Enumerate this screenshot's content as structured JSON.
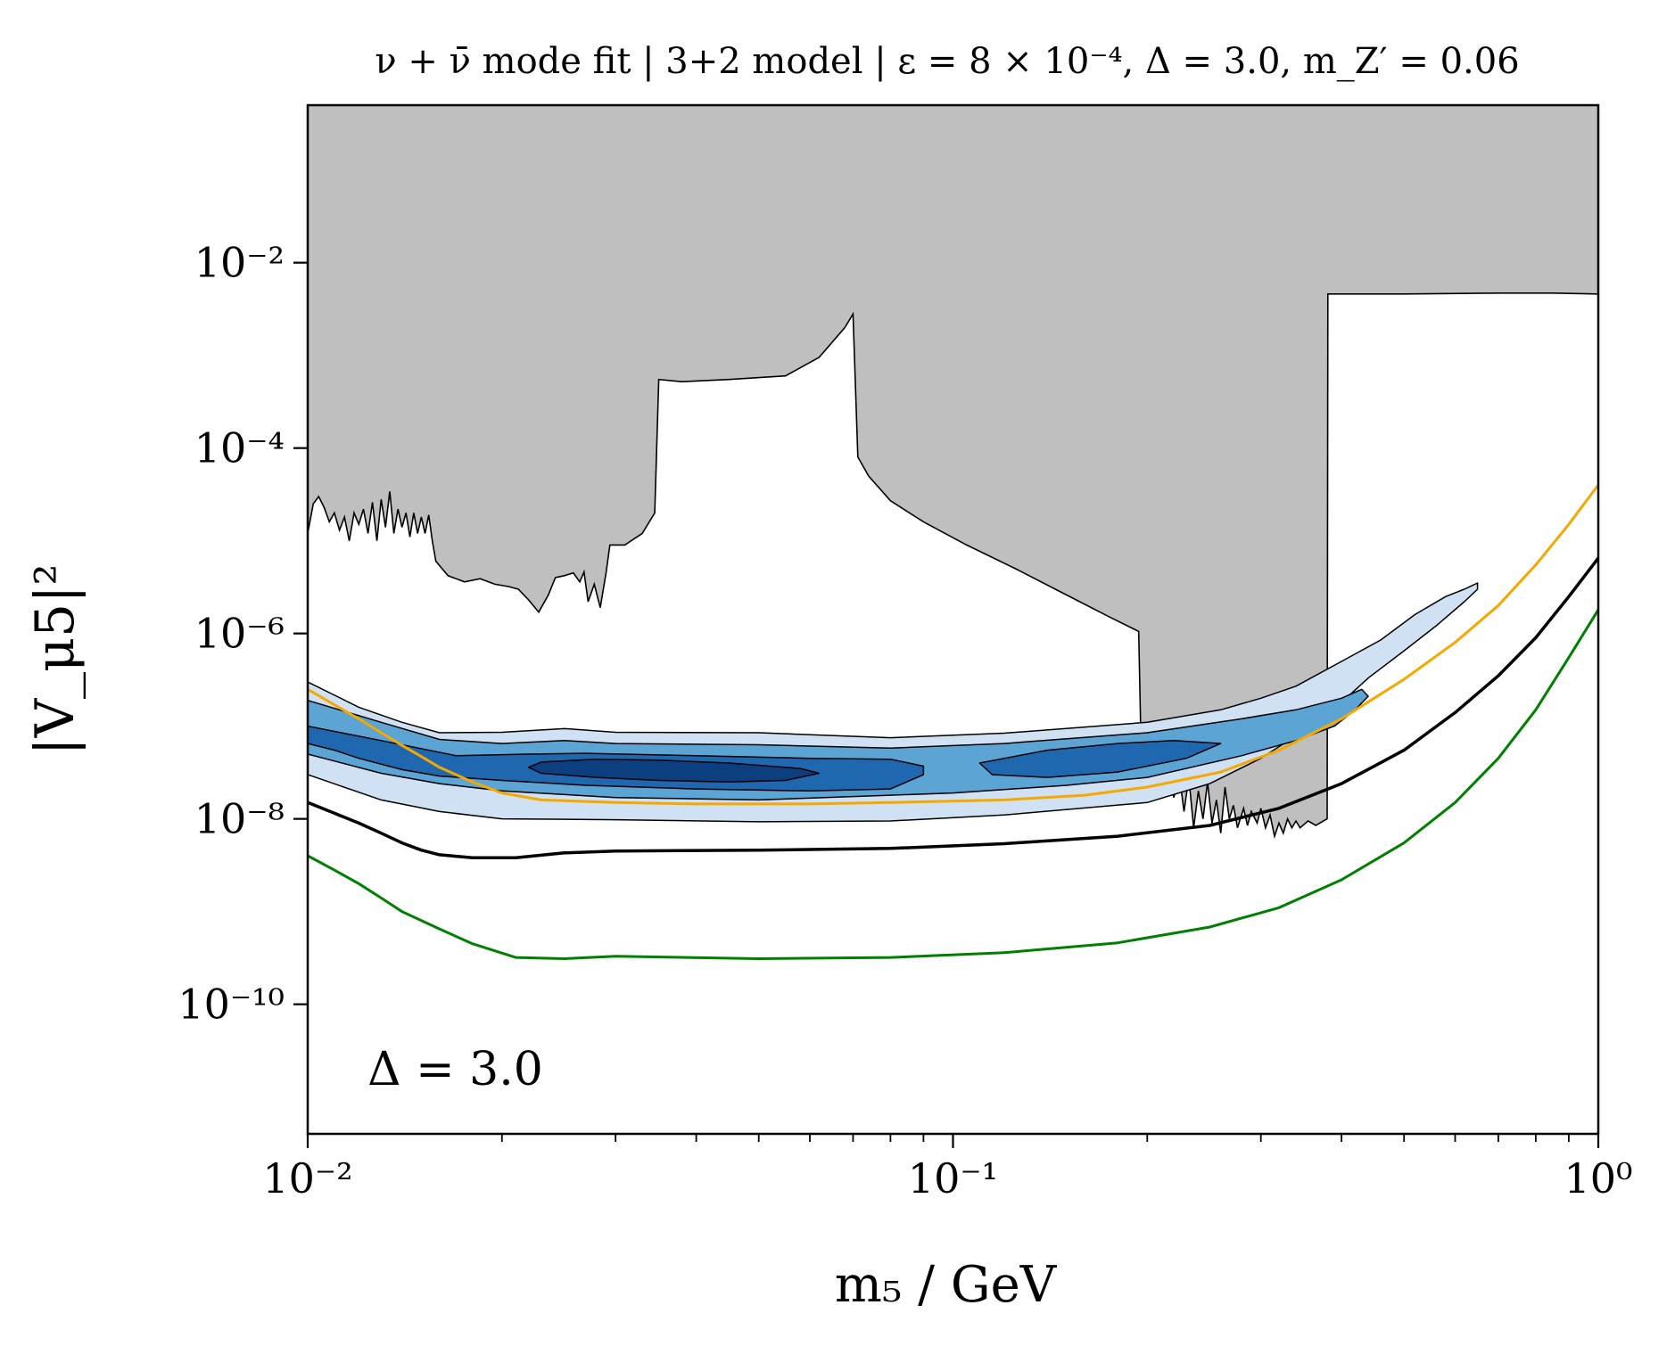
{
  "chart_data": {
    "type": "contour",
    "title": "ν + ν̄ mode fit | 3+2 model | ε = 8 × 10⁻⁴, Δ = 3.0, m_Z′ = 0.06",
    "title_parts": {
      "mode": "ν + ν̄ mode fit",
      "model": "3+2 model",
      "epsilon": "ε = 8 × 10⁻⁴",
      "delta": "Δ = 3.0",
      "mzp": "m_Z′ = 0.06"
    },
    "xlabel": "m₅ / GeV",
    "ylabel": "|V_μ5|²",
    "xscale": "log",
    "yscale": "log",
    "xlim": [
      0.01,
      1.0
    ],
    "ylim": [
      4e-12,
      0.5
    ],
    "x_tick_labels": [
      {
        "value": 0.01,
        "label": "10⁻²"
      },
      {
        "value": 0.1,
        "label": "10⁻¹"
      },
      {
        "value": 1.0,
        "label": "10⁰"
      }
    ],
    "y_tick_labels": [
      {
        "value": 1e-10,
        "label": "10⁻¹⁰"
      },
      {
        "value": 1e-08,
        "label": "10⁻⁸"
      },
      {
        "value": 1e-06,
        "label": "10⁻⁶"
      },
      {
        "value": 0.0001,
        "label": "10⁻⁴"
      },
      {
        "value": 0.01,
        "label": "10⁻²"
      }
    ],
    "annotation": "Δ = 3.0",
    "excluded_region": {
      "color": "#bfbfbf",
      "boundary": [
        [
          0.01,
          1.2e-05
        ],
        [
          0.0102,
          2.5e-05
        ],
        [
          0.0104,
          3e-05
        ],
        [
          0.0106,
          2.3e-05
        ],
        [
          0.0108,
          1.6e-05
        ],
        [
          0.011,
          2e-05
        ],
        [
          0.0112,
          1.3e-05
        ],
        [
          0.0114,
          1.8e-05
        ],
        [
          0.0116,
          1e-05
        ],
        [
          0.0118,
          2e-05
        ],
        [
          0.012,
          1.5e-05
        ],
        [
          0.0122,
          2.2e-05
        ],
        [
          0.0124,
          1.2e-05
        ],
        [
          0.0126,
          2.6e-05
        ],
        [
          0.0128,
          1e-05
        ],
        [
          0.013,
          2.8e-05
        ],
        [
          0.0132,
          1.4e-05
        ],
        [
          0.0134,
          3.4e-05
        ],
        [
          0.0136,
          1.2e-05
        ],
        [
          0.0138,
          2.2e-05
        ],
        [
          0.014,
          1.4e-05
        ],
        [
          0.0142,
          2e-05
        ],
        [
          0.0144,
          1.1e-05
        ],
        [
          0.0146,
          2e-05
        ],
        [
          0.0148,
          1.2e-05
        ],
        [
          0.015,
          1.8e-05
        ],
        [
          0.0152,
          1.2e-05
        ],
        [
          0.0154,
          1.9e-05
        ],
        [
          0.0156,
          1e-05
        ],
        [
          0.0158,
          6e-06
        ],
        [
          0.0165,
          4.2e-06
        ],
        [
          0.0175,
          3.6e-06
        ],
        [
          0.0185,
          3.9e-06
        ],
        [
          0.0195,
          3.4e-06
        ],
        [
          0.0205,
          3.2e-06
        ],
        [
          0.0212,
          3e-06
        ],
        [
          0.022,
          2.3e-06
        ],
        [
          0.0228,
          1.7e-06
        ],
        [
          0.0236,
          2.6e-06
        ],
        [
          0.0242,
          4e-06
        ],
        [
          0.025,
          4.2e-06
        ],
        [
          0.0258,
          4.5e-06
        ],
        [
          0.0264,
          3.6e-06
        ],
        [
          0.0268,
          4.6e-06
        ],
        [
          0.0272,
          2.2e-06
        ],
        [
          0.0278,
          3.4e-06
        ],
        [
          0.0284,
          1.9e-06
        ],
        [
          0.029,
          4.5e-06
        ],
        [
          0.0294,
          9e-06
        ],
        [
          0.031,
          9e-06
        ],
        [
          0.033,
          1.2e-05
        ],
        [
          0.0345,
          2e-05
        ],
        [
          0.035,
          0.00055
        ],
        [
          0.038,
          0.00052
        ],
        [
          0.045,
          0.00055
        ],
        [
          0.055,
          0.0006
        ],
        [
          0.062,
          0.00095
        ],
        [
          0.068,
          0.002
        ],
        [
          0.07,
          0.0028
        ],
        [
          0.0712,
          8e-05
        ],
        [
          0.074,
          5e-05
        ],
        [
          0.08,
          2.7e-05
        ],
        [
          0.09,
          1.6e-05
        ],
        [
          0.105,
          9e-06
        ],
        [
          0.125,
          5e-06
        ],
        [
          0.15,
          2.6e-06
        ],
        [
          0.175,
          1.5e-06
        ],
        [
          0.194,
          1.05e-06
        ],
        [
          0.196,
          3.2e-08
        ],
        [
          0.202,
          4e-08
        ],
        [
          0.206,
          2.5e-08
        ],
        [
          0.21,
          3.2e-08
        ],
        [
          0.213,
          2e-08
        ],
        [
          0.216,
          3.5e-08
        ],
        [
          0.22,
          1.7e-08
        ],
        [
          0.224,
          3.2e-08
        ],
        [
          0.228,
          1.2e-08
        ],
        [
          0.232,
          2.8e-08
        ],
        [
          0.236,
          8e-09
        ],
        [
          0.24,
          2e-08
        ],
        [
          0.244,
          1e-08
        ],
        [
          0.248,
          2.5e-08
        ],
        [
          0.252,
          9e-09
        ],
        [
          0.256,
          1.6e-08
        ],
        [
          0.26,
          7e-09
        ],
        [
          0.264,
          2.2e-08
        ],
        [
          0.268,
          1e-08
        ],
        [
          0.272,
          1.4e-08
        ],
        [
          0.276,
          8e-09
        ],
        [
          0.282,
          1.3e-08
        ],
        [
          0.286,
          8.5e-09
        ],
        [
          0.29,
          1.2e-08
        ],
        [
          0.296,
          9e-09
        ],
        [
          0.3,
          1.3e-08
        ],
        [
          0.305,
          8e-09
        ],
        [
          0.31,
          1.1e-08
        ],
        [
          0.315,
          6.5e-09
        ],
        [
          0.32,
          9e-09
        ],
        [
          0.325,
          7e-09
        ],
        [
          0.33,
          1e-08
        ],
        [
          0.335,
          8e-09
        ],
        [
          0.34,
          9.5e-09
        ],
        [
          0.345,
          8e-09
        ],
        [
          0.355,
          9.5e-09
        ],
        [
          0.365,
          8.5e-09
        ],
        [
          0.38,
          1e-08
        ],
        [
          0.381,
          0.0046
        ],
        [
          0.5,
          0.0046
        ],
        [
          0.7,
          0.0047
        ],
        [
          0.85,
          0.0047
        ],
        [
          1.0,
          0.0046
        ]
      ]
    },
    "contours": [
      {
        "level": "outer",
        "color": "#cfe1f2",
        "upper": [
          [
            0.01,
            3e-07
          ],
          [
            0.012,
            1.6e-07
          ],
          [
            0.014,
            1.1e-07
          ],
          [
            0.016,
            8.5e-08
          ],
          [
            0.02,
            8.6e-08
          ],
          [
            0.025,
            9.4e-08
          ],
          [
            0.03,
            8.6e-08
          ],
          [
            0.05,
            8.5e-08
          ],
          [
            0.08,
            7.5e-08
          ],
          [
            0.12,
            8.4e-08
          ],
          [
            0.2,
            1.1e-07
          ],
          [
            0.26,
            1.5e-07
          ],
          [
            0.3,
            2e-07
          ],
          [
            0.34,
            2.7e-07
          ],
          [
            0.4,
            5e-07
          ],
          [
            0.46,
            8.5e-07
          ],
          [
            0.52,
            1.6e-06
          ],
          [
            0.58,
            2.5e-06
          ],
          [
            0.62,
            3e-06
          ],
          [
            0.65,
            3.5e-06
          ]
        ],
        "lower": [
          [
            0.65,
            3e-06
          ],
          [
            0.62,
            2.2e-06
          ],
          [
            0.56,
            1.2e-06
          ],
          [
            0.5,
            6.5e-07
          ],
          [
            0.44,
            3.3e-07
          ],
          [
            0.4,
            1.8e-07
          ],
          [
            0.35,
            9e-08
          ],
          [
            0.3,
            4.5e-08
          ],
          [
            0.25,
            2.4e-08
          ],
          [
            0.2,
            1.5e-08
          ],
          [
            0.12,
            1.1e-08
          ],
          [
            0.08,
            9.5e-09
          ],
          [
            0.05,
            9.3e-09
          ],
          [
            0.03,
            9.8e-09
          ],
          [
            0.02,
            1e-08
          ],
          [
            0.016,
            1.2e-08
          ],
          [
            0.013,
            1.6e-08
          ],
          [
            0.01,
            3e-08
          ]
        ]
      },
      {
        "level": "middle",
        "color": "#5ba4d3",
        "upper": [
          [
            0.01,
            1.9e-07
          ],
          [
            0.013,
            1.1e-07
          ],
          [
            0.016,
            7.2e-08
          ],
          [
            0.02,
            6.5e-08
          ],
          [
            0.025,
            7e-08
          ],
          [
            0.03,
            6.5e-08
          ],
          [
            0.05,
            6.3e-08
          ],
          [
            0.08,
            5.8e-08
          ],
          [
            0.12,
            6.5e-08
          ],
          [
            0.2,
            8.5e-08
          ],
          [
            0.28,
            1.2e-07
          ],
          [
            0.34,
            1.5e-07
          ],
          [
            0.4,
            2e-07
          ],
          [
            0.43,
            2.5e-07
          ],
          [
            0.44,
            2.1e-07
          ],
          [
            0.42,
            1.5e-07
          ],
          [
            0.39,
            1e-07
          ]
        ],
        "lower": [
          [
            0.39,
            1e-07
          ],
          [
            0.34,
            7e-08
          ],
          [
            0.28,
            4.8e-08
          ],
          [
            0.2,
            2.8e-08
          ],
          [
            0.15,
            2.3e-08
          ],
          [
            0.1,
            1.9e-08
          ],
          [
            0.08,
            1.8e-08
          ],
          [
            0.05,
            1.6e-08
          ],
          [
            0.03,
            1.7e-08
          ],
          [
            0.02,
            2e-08
          ],
          [
            0.016,
            2.4e-08
          ],
          [
            0.013,
            3.1e-08
          ],
          [
            0.01,
            5e-08
          ]
        ]
      },
      {
        "level": "inner",
        "color": "#1f68b0",
        "upper": [
          [
            0.01,
            1e-07
          ],
          [
            0.013,
            7e-08
          ],
          [
            0.017,
            4.8e-08
          ],
          [
            0.022,
            5e-08
          ],
          [
            0.027,
            5.1e-08
          ],
          [
            0.04,
            4.8e-08
          ],
          [
            0.06,
            4.5e-08
          ],
          [
            0.08,
            4.4e-08
          ],
          [
            0.09,
            3.7e-08
          ]
        ],
        "lower": [
          [
            0.09,
            3e-08
          ],
          [
            0.08,
            2.1e-08
          ],
          [
            0.06,
            2e-08
          ],
          [
            0.04,
            2.1e-08
          ],
          [
            0.027,
            2.3e-08
          ],
          [
            0.02,
            2.6e-08
          ],
          [
            0.016,
            2.9e-08
          ],
          [
            0.014,
            3.4e-08
          ],
          [
            0.012,
            4.5e-08
          ],
          [
            0.011,
            5.5e-08
          ],
          [
            0.01,
            6.5e-08
          ]
        ]
      },
      {
        "level": "inner-right",
        "color": "#1f68b0",
        "upper": [
          [
            0.11,
            4e-08
          ],
          [
            0.14,
            5.5e-08
          ],
          [
            0.18,
            6.5e-08
          ],
          [
            0.22,
            7e-08
          ],
          [
            0.26,
            6.5e-08
          ]
        ],
        "lower": [
          [
            0.26,
            6.5e-08
          ],
          [
            0.23,
            4.5e-08
          ],
          [
            0.18,
            3.2e-08
          ],
          [
            0.14,
            2.8e-08
          ],
          [
            0.115,
            3e-08
          ],
          [
            0.11,
            4e-08
          ]
        ]
      },
      {
        "level": "core",
        "color": "#0b3f7f",
        "upper": [
          [
            0.023,
            4.1e-08
          ],
          [
            0.028,
            4.4e-08
          ],
          [
            0.035,
            4.3e-08
          ],
          [
            0.045,
            4e-08
          ],
          [
            0.058,
            3.5e-08
          ],
          [
            0.062,
            3.1e-08
          ]
        ],
        "lower": [
          [
            0.062,
            3.1e-08
          ],
          [
            0.055,
            2.6e-08
          ],
          [
            0.045,
            2.5e-08
          ],
          [
            0.035,
            2.6e-08
          ],
          [
            0.028,
            2.8e-08
          ],
          [
            0.023,
            3.1e-08
          ],
          [
            0.022,
            3.6e-08
          ],
          [
            0.023,
            4.1e-08
          ]
        ]
      }
    ],
    "lines": [
      {
        "color": "#f5a800",
        "width": 3,
        "points": [
          [
            0.01,
            2.5e-07
          ],
          [
            0.011,
            1.7e-07
          ],
          [
            0.012,
            1.2e-07
          ],
          [
            0.013,
            8.5e-08
          ],
          [
            0.014,
            6.2e-08
          ],
          [
            0.015,
            4.7e-08
          ],
          [
            0.016,
            3.6e-08
          ],
          [
            0.018,
            2.5e-08
          ],
          [
            0.02,
            1.9e-08
          ],
          [
            0.023,
            1.6e-08
          ],
          [
            0.03,
            1.5e-08
          ],
          [
            0.04,
            1.45e-08
          ],
          [
            0.06,
            1.45e-08
          ],
          [
            0.08,
            1.5e-08
          ],
          [
            0.12,
            1.6e-08
          ],
          [
            0.16,
            1.8e-08
          ],
          [
            0.2,
            2.2e-08
          ],
          [
            0.26,
            3.2e-08
          ],
          [
            0.32,
            5.5e-08
          ],
          [
            0.4,
            1.2e-07
          ],
          [
            0.5,
            3.2e-07
          ],
          [
            0.6,
            8e-07
          ],
          [
            0.7,
            2e-06
          ],
          [
            0.8,
            5.5e-06
          ],
          [
            0.9,
            1.5e-05
          ],
          [
            1.0,
            4e-05
          ]
        ]
      },
      {
        "color": "#000000",
        "width": 3.5,
        "points": [
          [
            0.01,
            1.5e-08
          ],
          [
            0.011,
            1.15e-08
          ],
          [
            0.012,
            9e-09
          ],
          [
            0.013,
            7e-09
          ],
          [
            0.014,
            5.5e-09
          ],
          [
            0.015,
            4.6e-09
          ],
          [
            0.016,
            4.1e-09
          ],
          [
            0.018,
            3.8e-09
          ],
          [
            0.021,
            3.8e-09
          ],
          [
            0.025,
            4.3e-09
          ],
          [
            0.03,
            4.5e-09
          ],
          [
            0.05,
            4.6e-09
          ],
          [
            0.08,
            4.8e-09
          ],
          [
            0.12,
            5.4e-09
          ],
          [
            0.18,
            6.5e-09
          ],
          [
            0.25,
            8.5e-09
          ],
          [
            0.32,
            1.3e-08
          ],
          [
            0.4,
            2.4e-08
          ],
          [
            0.5,
            5.5e-08
          ],
          [
            0.6,
            1.4e-07
          ],
          [
            0.7,
            3.5e-07
          ],
          [
            0.8,
            9e-07
          ],
          [
            0.9,
            2.5e-06
          ],
          [
            1.0,
            6.5e-06
          ]
        ]
      },
      {
        "color": "#008000",
        "width": 3,
        "points": [
          [
            0.01,
            4e-09
          ],
          [
            0.011,
            2.8e-09
          ],
          [
            0.012,
            2e-09
          ],
          [
            0.013,
            1.4e-09
          ],
          [
            0.014,
            1e-09
          ],
          [
            0.016,
            6.5e-10
          ],
          [
            0.018,
            4.5e-10
          ],
          [
            0.021,
            3.2e-10
          ],
          [
            0.025,
            3.1e-10
          ],
          [
            0.03,
            3.3e-10
          ],
          [
            0.05,
            3.1e-10
          ],
          [
            0.08,
            3.2e-10
          ],
          [
            0.12,
            3.6e-10
          ],
          [
            0.18,
            4.6e-10
          ],
          [
            0.25,
            6.8e-10
          ],
          [
            0.32,
            1.1e-09
          ],
          [
            0.4,
            2.2e-09
          ],
          [
            0.5,
            5.5e-09
          ],
          [
            0.6,
            1.5e-08
          ],
          [
            0.7,
            4.5e-08
          ],
          [
            0.8,
            1.5e-07
          ],
          [
            0.9,
            5.5e-07
          ],
          [
            1.0,
            1.8e-06
          ]
        ]
      }
    ]
  }
}
